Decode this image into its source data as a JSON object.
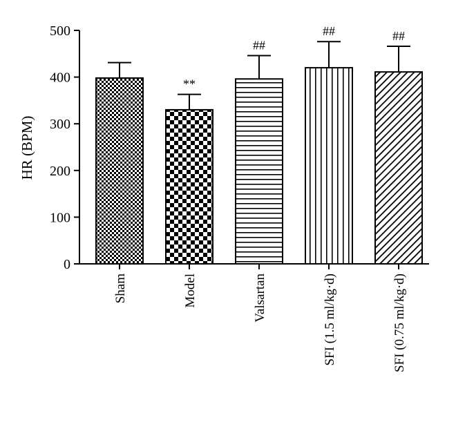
{
  "chart_data": {
    "type": "bar",
    "title": "",
    "xlabel": "",
    "ylabel": "HR (BPM)",
    "ylim": [
      0,
      500
    ],
    "yticks": [
      "0",
      "100",
      "200",
      "300",
      "400",
      "500"
    ],
    "grid": false,
    "categories": [
      "Sham",
      "Model",
      "Valsartan",
      "SFI (1.5 ml/kg·d)",
      "SFI (0.75 ml/kg·d)"
    ],
    "values": [
      398,
      330,
      396,
      420,
      411
    ],
    "errors": [
      33,
      33,
      50,
      56,
      55
    ],
    "annotations": [
      "",
      "**",
      "##",
      "##",
      "##"
    ],
    "patterns": [
      "fine-checker",
      "coarse-checker",
      "horizontal-lines",
      "vertical-lines",
      "diagonal-lines"
    ],
    "colors": {
      "bar_stroke": "#000000",
      "fill": "#000000",
      "background": "#ffffff"
    }
  }
}
